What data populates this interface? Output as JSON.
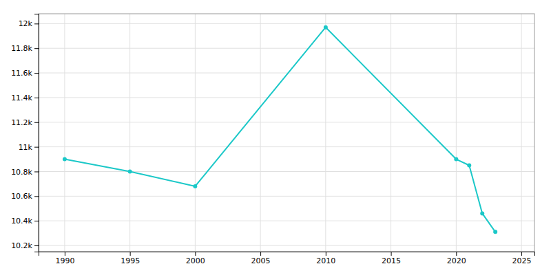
{
  "chart_data": {
    "type": "line",
    "x": [
      1990,
      1995,
      2000,
      2010,
      2020,
      2021,
      2022,
      2023
    ],
    "values": [
      10900,
      10800,
      10680,
      11970,
      10900,
      10850,
      10460,
      10310
    ],
    "color": "#1bc8c8",
    "marker": "circle",
    "xlim": [
      1988,
      2026
    ],
    "ylim": [
      10150,
      12080
    ],
    "xticks": [
      1990,
      1995,
      2000,
      2005,
      2010,
      2015,
      2020,
      2025
    ],
    "yticks": [
      {
        "value": 10200,
        "label": "10.2k"
      },
      {
        "value": 10400,
        "label": "10.4k"
      },
      {
        "value": 10600,
        "label": "10.6k"
      },
      {
        "value": 10800,
        "label": "10.8k"
      },
      {
        "value": 11000,
        "label": "11k"
      },
      {
        "value": 11200,
        "label": "11.2k"
      },
      {
        "value": 11400,
        "label": "11.4k"
      },
      {
        "value": 11600,
        "label": "11.6k"
      },
      {
        "value": 11800,
        "label": "11.8k"
      },
      {
        "value": 12000,
        "label": "12k"
      }
    ],
    "grid": true
  }
}
